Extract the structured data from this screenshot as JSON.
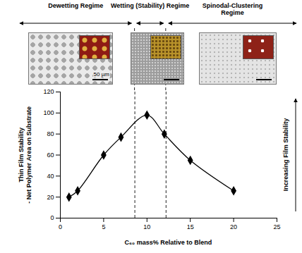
{
  "chart_data": {
    "type": "line",
    "x_label": "C₆₀ mass% Relative to Blend",
    "y_label": "Thin Film Stability - Net Polymer Area on Substrate",
    "side_label": "Increasing Film Stability",
    "regimes": [
      "Dewetting Regime",
      "Wetting (Stability) Regime",
      "Spinodal-Clustering Regime"
    ],
    "boundaries": [
      8.6,
      12.2
    ],
    "scale_bar_label": "50 µm",
    "x": [
      1,
      2,
      5,
      7,
      10,
      12,
      15,
      20
    ],
    "values": [
      20,
      26,
      60,
      77,
      98,
      80,
      55,
      26
    ],
    "color": "#000000",
    "marker": "diamond",
    "line_style": "solid",
    "xlim": [
      0,
      25
    ],
    "xticks": [
      0,
      5,
      10,
      15,
      20,
      25
    ],
    "ylim": [
      0,
      120
    ],
    "yticks": [
      0,
      20,
      40,
      60,
      80,
      100,
      120
    ],
    "grid": false
  }
}
